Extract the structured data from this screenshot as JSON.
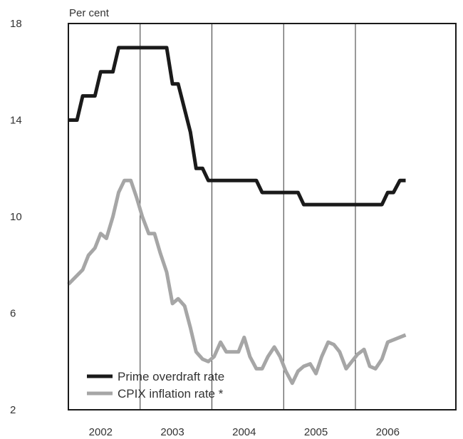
{
  "chart_data": {
    "type": "line",
    "ylabel": "Per cent",
    "ylim": [
      2,
      18
    ],
    "yticks": [
      2,
      6,
      10,
      14,
      18
    ],
    "xlim": [
      2001.55,
      2006.95
    ],
    "xticks": [
      {
        "label": "2002",
        "x": 2002.0
      },
      {
        "label": "2003",
        "x": 2003.0
      },
      {
        "label": "2004",
        "x": 2004.0
      },
      {
        "label": "2005",
        "x": 2005.0
      },
      {
        "label": "2006",
        "x": 2006.0
      }
    ],
    "vgrid": [
      2002.55,
      2003.55,
      2004.55,
      2005.55
    ],
    "legend_position": "bottom-left",
    "series": [
      {
        "name": "Prime overdraft rate",
        "color": "#1a1a1a",
        "points": [
          [
            2001.55,
            14.0
          ],
          [
            2001.67,
            14.0
          ],
          [
            2001.75,
            15.0
          ],
          [
            2001.92,
            15.0
          ],
          [
            2002.0,
            16.0
          ],
          [
            2002.17,
            16.0
          ],
          [
            2002.25,
            17.0
          ],
          [
            2002.92,
            17.0
          ],
          [
            2003.0,
            15.5
          ],
          [
            2003.08,
            15.5
          ],
          [
            2003.25,
            13.5
          ],
          [
            2003.33,
            12.0
          ],
          [
            2003.42,
            12.0
          ],
          [
            2003.5,
            11.5
          ],
          [
            2004.17,
            11.5
          ],
          [
            2004.25,
            11.0
          ],
          [
            2004.75,
            11.0
          ],
          [
            2004.83,
            10.5
          ],
          [
            2005.92,
            10.5
          ],
          [
            2006.0,
            11.0
          ],
          [
            2006.08,
            11.0
          ],
          [
            2006.17,
            11.5
          ],
          [
            2006.25,
            11.5
          ]
        ]
      },
      {
        "name": "CPIX inflation rate *",
        "color": "#a6a6a6",
        "points": [
          [
            2001.55,
            7.2
          ],
          [
            2001.75,
            7.8
          ],
          [
            2001.83,
            8.4
          ],
          [
            2001.92,
            8.7
          ],
          [
            2002.0,
            9.3
          ],
          [
            2002.08,
            9.1
          ],
          [
            2002.17,
            10.0
          ],
          [
            2002.25,
            11.0
          ],
          [
            2002.33,
            11.5
          ],
          [
            2002.42,
            11.5
          ],
          [
            2002.5,
            10.8
          ],
          [
            2002.58,
            10.0
          ],
          [
            2002.67,
            9.3
          ],
          [
            2002.75,
            9.3
          ],
          [
            2002.83,
            8.5
          ],
          [
            2002.92,
            7.7
          ],
          [
            2003.0,
            6.4
          ],
          [
            2003.08,
            6.6
          ],
          [
            2003.17,
            6.3
          ],
          [
            2003.25,
            5.4
          ],
          [
            2003.33,
            4.4
          ],
          [
            2003.42,
            4.1
          ],
          [
            2003.5,
            4.0
          ],
          [
            2003.58,
            4.2
          ],
          [
            2003.67,
            4.8
          ],
          [
            2003.75,
            4.4
          ],
          [
            2003.83,
            4.4
          ],
          [
            2003.92,
            4.4
          ],
          [
            2004.0,
            5.0
          ],
          [
            2004.08,
            4.2
          ],
          [
            2004.17,
            3.7
          ],
          [
            2004.25,
            3.7
          ],
          [
            2004.33,
            4.2
          ],
          [
            2004.42,
            4.6
          ],
          [
            2004.5,
            4.2
          ],
          [
            2004.58,
            3.6
          ],
          [
            2004.67,
            3.1
          ],
          [
            2004.75,
            3.6
          ],
          [
            2004.83,
            3.8
          ],
          [
            2004.92,
            3.9
          ],
          [
            2005.0,
            3.5
          ],
          [
            2005.08,
            4.2
          ],
          [
            2005.17,
            4.8
          ],
          [
            2005.25,
            4.7
          ],
          [
            2005.33,
            4.4
          ],
          [
            2005.42,
            3.7
          ],
          [
            2005.5,
            4.0
          ],
          [
            2005.58,
            4.3
          ],
          [
            2005.67,
            4.5
          ],
          [
            2005.75,
            3.8
          ],
          [
            2005.83,
            3.7
          ],
          [
            2005.92,
            4.1
          ],
          [
            2006.0,
            4.8
          ],
          [
            2006.25,
            5.1
          ]
        ]
      }
    ]
  }
}
